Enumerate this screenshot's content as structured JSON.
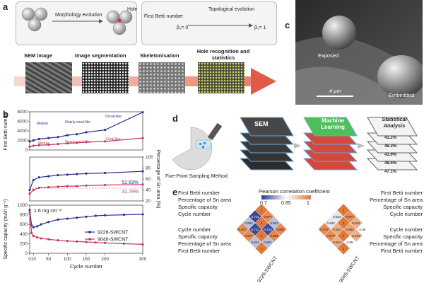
{
  "panel_a": {
    "letter": "a",
    "morphology_label": "Morphology evolution",
    "hole_label": "Hole",
    "first_betti_label": "First Betti number",
    "beta_before": "β₁= 0",
    "topological_label": "Topological evolution",
    "beta_after": "β₁= 1",
    "steps": [
      "SEM image",
      "Image segmentation",
      "Skeletonisation",
      "Hole recognition and statistics"
    ]
  },
  "panel_b": {
    "letter": "b",
    "ylabel_top": "First Betti number",
    "ylabel_mid": "Percentage of Sn area (%)",
    "ylabel_bottom": "Specific capacity (mAh g⁻¹)",
    "xlabel": "Cycle number",
    "annotations": [
      "Circuit-like",
      "Mixture",
      "Nearly coral-like",
      "Coral-like",
      "Nearly coral-like",
      "Mixture"
    ],
    "pct_labels": [
      "52.69%",
      "31.78%"
    ],
    "current_label": "1.6 mg cm⁻²",
    "legend": [
      "9226-SWCNT",
      "9046-SWCNT"
    ],
    "colors": {
      "s9226": "#2b2f8f",
      "s9046": "#c8375a"
    }
  },
  "panel_c": {
    "letter": "c",
    "exposed_label": "Exposed",
    "embedded_label": "Embedded",
    "scale_label": "4 μm"
  },
  "panel_d": {
    "letter": "d",
    "sampling_label": "Five-Point Sampling Method",
    "sem_label": "SEM",
    "ml_label": "Machine Learning",
    "stats_label": "Statistical Analysis",
    "stat_values": [
      "41.2%",
      "46.3%",
      "43.9%",
      "48.5%",
      "47.1%"
    ]
  },
  "panel_e": {
    "letter": "e",
    "legend_title": "Pearson correlation coefficient",
    "legend_ticks": [
      "0.7",
      "0.85",
      "1"
    ],
    "left_labels_top": [
      "First Betti number",
      "Percentage of Sn area",
      "Specific capacity",
      "Cycle number"
    ],
    "left_labels_bottom": [
      "Cycle number",
      "Specific capacity",
      "Percentage of Sn area",
      "First Betti number"
    ],
    "left_name": "9226-SWCNT",
    "right_labels_top": [
      "First Betti number",
      "Percentage of Sn area",
      "Specific capacity",
      "Cycle number"
    ],
    "right_labels_bottom": [
      "Cycle number",
      "Specific capacity",
      "Percentage of Sn area",
      "First Betti number"
    ],
    "right_name": "9046-SWCNT",
    "left_values": [
      "0.977",
      "0.801",
      "0.981",
      "0.711",
      "0.714",
      "0.981",
      "0.802",
      "0.711",
      "0.801",
      "0.977"
    ],
    "right_values": [
      "0.977",
      "0.942",
      "0.85",
      "0.832",
      "0.953",
      "0.939",
      "0.832",
      "0.942",
      "0.85",
      "0.977"
    ]
  },
  "chart_data": [
    {
      "type": "line",
      "title": "",
      "xlabel": "Cycle number",
      "ylabel": "First Betti number",
      "xlim": [
        0,
        300
      ],
      "ylim": [
        0,
        8000
      ],
      "series": [
        {
          "name": "9226-SWCNT",
          "x": [
            0,
            10,
            25,
            50,
            75,
            100,
            125,
            150,
            200,
            300
          ],
          "values": [
            1800,
            2000,
            2300,
            2500,
            2700,
            3100,
            3300,
            3700,
            4200,
            7900
          ]
        },
        {
          "name": "9046-SWCNT",
          "x": [
            0,
            10,
            25,
            50,
            75,
            100,
            125,
            150,
            200,
            300
          ],
          "values": [
            700,
            900,
            1000,
            1100,
            1250,
            1400,
            1500,
            1650,
            1800,
            2500
          ]
        }
      ]
    },
    {
      "type": "line",
      "xlabel": "Cycle number",
      "ylabel": "Percentage of Sn area (%)",
      "xlim": [
        0,
        300
      ],
      "ylim": [
        20,
        100
      ],
      "series": [
        {
          "name": "9226-SWCNT",
          "x": [
            0,
            10,
            25,
            50,
            75,
            100,
            125,
            150,
            200,
            300
          ],
          "values": [
            40,
            58,
            63,
            65,
            67,
            68,
            69,
            70,
            71,
            74
          ]
        },
        {
          "name": "9046-SWCNT",
          "x": [
            0,
            10,
            25,
            50,
            75,
            100,
            125,
            150,
            200,
            300
          ],
          "values": [
            33,
            40,
            44,
            45,
            46,
            47,
            47,
            48,
            49,
            50
          ]
        }
      ]
    },
    {
      "type": "line",
      "xlabel": "Cycle number",
      "ylabel": "Specific capacity (mAh g⁻¹)",
      "xlim": [
        0,
        300
      ],
      "ylim": [
        0,
        1000
      ],
      "xticks": [
        0,
        10,
        50,
        100,
        150,
        200,
        300
      ],
      "yticks": [
        0,
        200,
        400,
        600,
        800,
        1000
      ],
      "series": [
        {
          "name": "9226-SWCNT",
          "x": [
            0,
            5,
            10,
            20,
            30,
            50,
            75,
            100,
            125,
            150,
            175,
            200,
            250,
            300
          ],
          "values": [
            900,
            580,
            540,
            560,
            600,
            650,
            700,
            720,
            740,
            760,
            780,
            790,
            800,
            810
          ]
        },
        {
          "name": "9046-SWCNT",
          "x": [
            0,
            5,
            10,
            20,
            30,
            50,
            75,
            100,
            125,
            150,
            175,
            200,
            250,
            300
          ],
          "values": [
            850,
            420,
            360,
            330,
            310,
            290,
            270,
            255,
            245,
            235,
            225,
            215,
            200,
            185
          ]
        }
      ]
    }
  ]
}
